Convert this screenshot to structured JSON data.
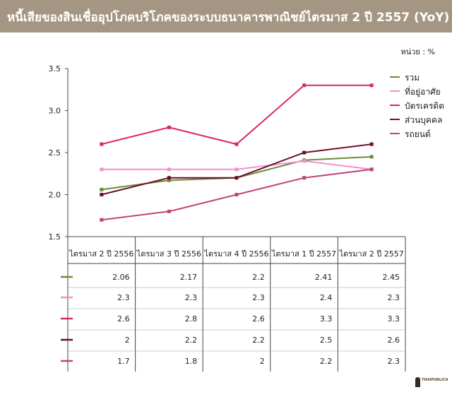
{
  "header": {
    "title": "หนี้เสียของสินเชื่ออุปโภคบริโภคของระบบธนาคารพาณิชย์ไตรมาส 2 ปี 2557 (YoY)"
  },
  "unit_label": "หน่วย : %",
  "logo": {
    "text": "THAIPUBLICA"
  },
  "chart_data": {
    "type": "line",
    "categories": [
      "ไตรมาส 2 ปี 2556",
      "ไตรมาส 3 ปี 2556",
      "ไตรมาส 4 ปี 2556",
      "ไตรมาส 1 ปี 2557",
      "ไตรมาส 2 ปี 2557"
    ],
    "ylim": [
      1.5,
      3.5
    ],
    "yticks": [
      "1.5",
      "2.0",
      "2.5",
      "3.0",
      "3.5"
    ],
    "legend_position": "right",
    "grid": false,
    "series": [
      {
        "name": "รวม",
        "color": "#6b8e3a",
        "values": [
          2.06,
          2.17,
          2.2,
          2.41,
          2.45
        ],
        "labels": [
          "2.06",
          "2.17",
          "2.2",
          "2.41",
          "2.45"
        ]
      },
      {
        "name": "ที่อยู่อาศัย",
        "color": "#f28fd0",
        "values": [
          2.3,
          2.3,
          2.3,
          2.4,
          2.3
        ],
        "labels": [
          "2.3",
          "2.3",
          "2.3",
          "2.4",
          "2.3"
        ]
      },
      {
        "name": "บัตรเครดิต",
        "color": "#d92a5a",
        "values": [
          2.6,
          2.8,
          2.6,
          3.3,
          3.3
        ],
        "labels": [
          "2.6",
          "2.8",
          "2.6",
          "3.3",
          "3.3"
        ]
      },
      {
        "name": "ส่วนบุคคล",
        "color": "#6e0f2a",
        "values": [
          2.0,
          2.2,
          2.2,
          2.5,
          2.6
        ],
        "labels": [
          "2",
          "2.2",
          "2.2",
          "2.5",
          "2.6"
        ]
      },
      {
        "name": "รถยนต์",
        "color": "#c0457a",
        "values": [
          1.7,
          1.8,
          2.0,
          2.2,
          2.3
        ],
        "labels": [
          "1.7",
          "1.8",
          "2",
          "2.2",
          "2.3"
        ]
      }
    ]
  }
}
